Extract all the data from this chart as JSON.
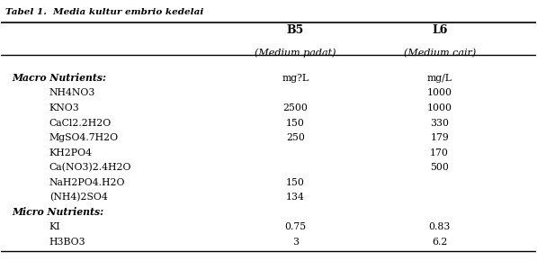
{
  "title": "Tabel 1.  Media kultur embrio kedelai",
  "col_headers": [
    "",
    "B5\n(Medium padat)",
    "L6\n(Medium cair)"
  ],
  "col_header_line1": [
    "",
    "B5",
    "L6"
  ],
  "col_header_line2": [
    "",
    "(Medium padat)",
    "(Medium cair)"
  ],
  "rows": [
    {
      "label": "Macro Nutrients:",
      "b5": "mg?L",
      "l6": "mg/L",
      "bold_italic_label": true,
      "indent": false,
      "unit_row": true
    },
    {
      "label": "NH4NO3",
      "b5": "",
      "l6": "1000",
      "bold_italic_label": false,
      "indent": true
    },
    {
      "label": "KNO3",
      "b5": "2500",
      "l6": "1000",
      "bold_italic_label": false,
      "indent": true
    },
    {
      "label": "CaCl2.2H2O",
      "b5": "150",
      "l6": "330",
      "bold_italic_label": false,
      "indent": true
    },
    {
      "label": "MgSO4.7H2O",
      "b5": "250",
      "l6": "179",
      "bold_italic_label": false,
      "indent": true
    },
    {
      "label": "KH2PO4",
      "b5": "",
      "l6": "170",
      "bold_italic_label": false,
      "indent": true
    },
    {
      "label": "Ca(NO3)2.4H2O",
      "b5": "",
      "l6": "500",
      "bold_italic_label": false,
      "indent": true
    },
    {
      "label": "NaH2PO4.H2O",
      "b5": "150",
      "l6": "",
      "bold_italic_label": false,
      "indent": true
    },
    {
      "label": "(NH4)2SO4",
      "b5": "134",
      "l6": "",
      "bold_italic_label": false,
      "indent": true
    },
    {
      "label": "Micro Nutrients:",
      "b5": "",
      "l6": "",
      "bold_italic_label": true,
      "indent": false
    },
    {
      "label": "KI",
      "b5": "0.75",
      "l6": "0.83",
      "bold_italic_label": false,
      "indent": true
    },
    {
      "label": "H3BO3",
      "b5": "3",
      "l6": "6.2",
      "bold_italic_label": false,
      "indent": true
    }
  ],
  "background_color": "#ffffff",
  "text_color": "#000000",
  "font_family": "serif"
}
